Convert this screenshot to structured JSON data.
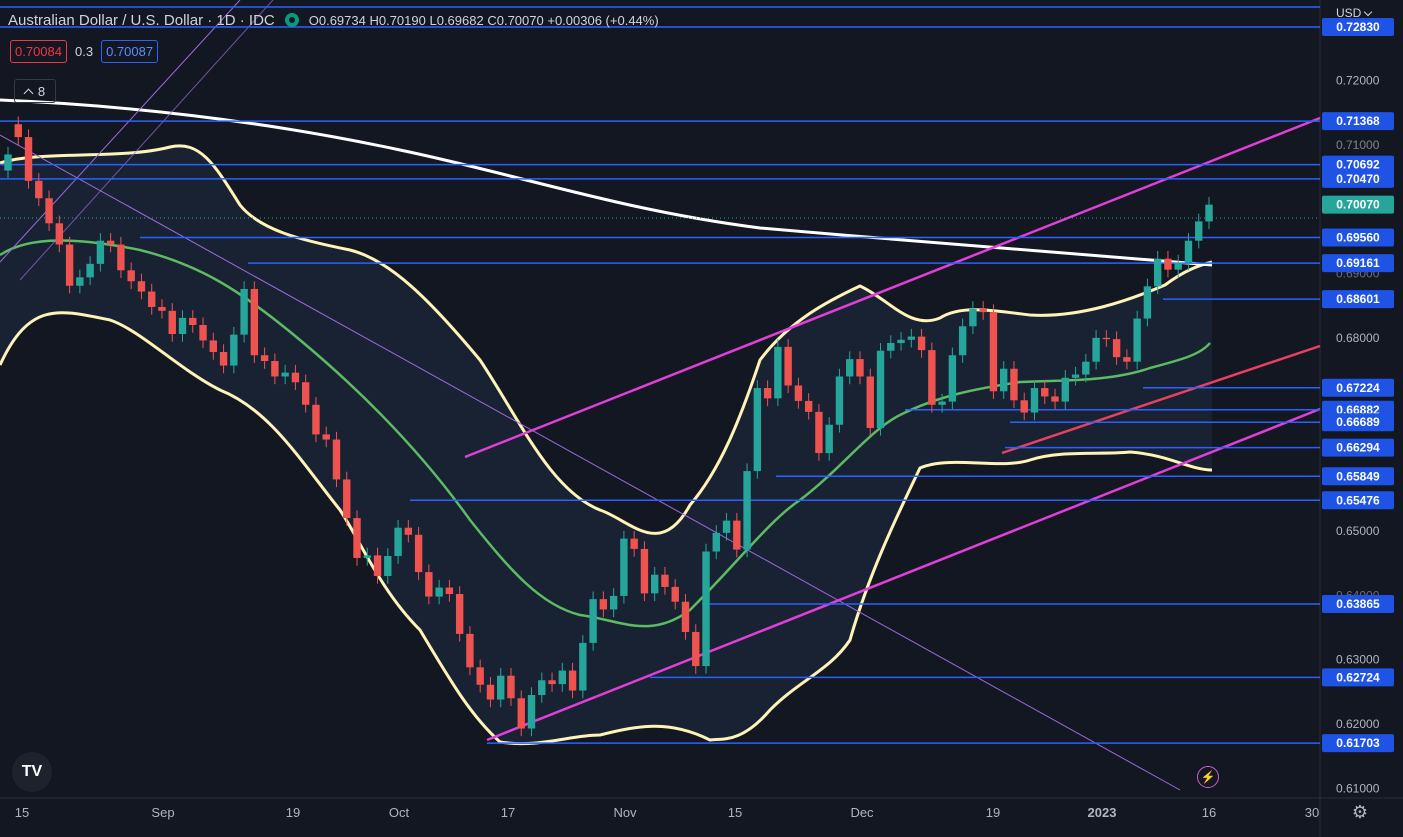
{
  "header": {
    "symbol": "Australian Dollar / U.S. Dollar · 1D · IDC",
    "open": "O0.69734",
    "high": "H0.70190",
    "low": "L0.69682",
    "close": "C0.70070",
    "change": "+0.00306 (+0.44%)"
  },
  "quote": {
    "sell": "0.70084",
    "spread": "0.3",
    "buy": "0.70087"
  },
  "indicators_toggle": {
    "count": "8"
  },
  "currency": "USD",
  "colors": {
    "background": "#131722",
    "up": "#26a69a",
    "down": "#ef5350",
    "level_line": "#2962ff",
    "channel": "#e040d8",
    "bollinger": "#fff3b8",
    "ma_mid": "#5dbb63",
    "ma_long": "#ffffff"
  },
  "icons": {
    "logo": "tradingview-logo-icon",
    "bolt": "lightning-icon",
    "settings": "gear-icon"
  },
  "chart_data": {
    "type": "candlestick",
    "x_ticks": [
      "15",
      "Sep",
      "19",
      "Oct",
      "17",
      "Nov",
      "15",
      "Dec",
      "19",
      "2023",
      "16",
      "30"
    ],
    "y_ticks": [
      "0.72000",
      "0.71000",
      "0.68000",
      "0.65000",
      "0.63000",
      "0.62000",
      "0.61000"
    ],
    "hidden_y_ticks": [
      "0.72830",
      "0.71000",
      "0.70000",
      "0.69000",
      "0.64000"
    ],
    "ylim": [
      0.6085,
      0.7325
    ],
    "last_price": "0.70070",
    "horizontal_levels": [
      "0.72830",
      "0.71368",
      "0.70692",
      "0.70470",
      "0.69560",
      "0.69161",
      "0.68601",
      "0.67224",
      "0.66882",
      "0.66689",
      "0.66294",
      "0.65849",
      "0.65476",
      "0.63865",
      "0.62724",
      "0.61703"
    ],
    "candles_close": [
      0.7085,
      0.7112,
      0.7044,
      0.7017,
      0.6978,
      0.6945,
      0.6881,
      0.6894,
      0.6915,
      0.6951,
      0.6945,
      0.6905,
      0.6888,
      0.6872,
      0.6848,
      0.6842,
      0.6806,
      0.6831,
      0.682,
      0.6796,
      0.6778,
      0.6757,
      0.6805,
      0.6876,
      0.6773,
      0.6764,
      0.674,
      0.6746,
      0.6731,
      0.6696,
      0.665,
      0.6642,
      0.658,
      0.652,
      0.6458,
      0.6462,
      0.643,
      0.6461,
      0.6505,
      0.6494,
      0.6436,
      0.6398,
      0.6412,
      0.6402,
      0.634,
      0.6288,
      0.6261,
      0.6238,
      0.6275,
      0.624,
      0.6193,
      0.6245,
      0.6268,
      0.6262,
      0.6283,
      0.6252,
      0.6326,
      0.6394,
      0.6378,
      0.6399,
      0.6488,
      0.6472,
      0.6403,
      0.6432,
      0.6413,
      0.639,
      0.6343,
      0.629,
      0.6468,
      0.6497,
      0.6516,
      0.6471,
      0.6593,
      0.6722,
      0.6706,
      0.6786,
      0.6726,
      0.6702,
      0.6685,
      0.6621,
      0.6665,
      0.674,
      0.6767,
      0.674,
      0.666,
      0.678,
      0.6792,
      0.6797,
      0.6802,
      0.6781,
      0.6696,
      0.6701,
      0.6773,
      0.6818,
      0.6845,
      0.684,
      0.6717,
      0.6752,
      0.6703,
      0.6684,
      0.6722,
      0.6709,
      0.6701,
      0.6738,
      0.6743,
      0.6763,
      0.68,
      0.6798,
      0.677,
      0.6763,
      0.683,
      0.688,
      0.6923,
      0.6906,
      0.6917,
      0.6951,
      0.6981,
      0.7007
    ],
    "candles_dir": [
      "up",
      "down",
      "down",
      "down",
      "down",
      "down",
      "down",
      "up",
      "up",
      "up",
      "down",
      "down",
      "down",
      "down",
      "down",
      "down",
      "down",
      "up",
      "down",
      "down",
      "down",
      "down",
      "up",
      "up",
      "down",
      "down",
      "down",
      "up",
      "down",
      "down",
      "down",
      "down",
      "down",
      "down",
      "down",
      "up",
      "down",
      "up",
      "up",
      "down",
      "down",
      "down",
      "up",
      "down",
      "down",
      "down",
      "down",
      "down",
      "up",
      "down",
      "down",
      "up",
      "up",
      "down",
      "up",
      "down",
      "up",
      "up",
      "down",
      "up",
      "up",
      "down",
      "down",
      "up",
      "down",
      "down",
      "down",
      "down",
      "up",
      "up",
      "up",
      "down",
      "up",
      "up",
      "down",
      "up",
      "down",
      "down",
      "down",
      "down",
      "up",
      "up",
      "up",
      "down",
      "down",
      "up",
      "up",
      "up",
      "up",
      "down",
      "down",
      "up",
      "up",
      "up",
      "up",
      "down",
      "down",
      "up",
      "down",
      "down",
      "up",
      "down",
      "down",
      "up",
      "up",
      "up",
      "up",
      "down",
      "down",
      "down",
      "up",
      "up",
      "up",
      "down",
      "up",
      "up",
      "up",
      "up"
    ]
  }
}
